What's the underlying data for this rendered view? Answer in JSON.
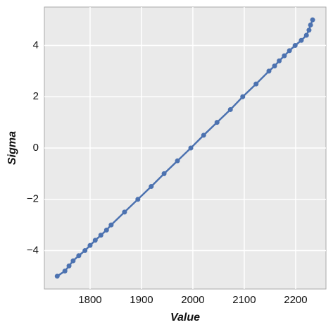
{
  "chart_data": {
    "type": "line",
    "x_label": "Value",
    "y_label": "Sigma",
    "x": [
      1736,
      1751,
      1759,
      1767,
      1778,
      1790,
      1800,
      1810,
      1821,
      1832,
      1841,
      1867,
      1893,
      1919,
      1944,
      1970,
      1996,
      2021,
      2047,
      2073,
      2097,
      2123,
      2148,
      2159,
      2168,
      2178,
      2188,
      2199,
      2211,
      2221,
      2226,
      2229,
      2233
    ],
    "series": [
      {
        "color": "#4c72b0",
        "values": [
          -5,
          -4.8,
          -4.6,
          -4.4,
          -4.2,
          -4,
          -3.8,
          -3.6,
          -3.4,
          -3.2,
          -3,
          -2.5,
          -2,
          -1.5,
          -1,
          -0.5,
          0,
          0.5,
          1,
          1.5,
          2,
          2.5,
          3,
          3.2,
          3.4,
          3.6,
          3.8,
          4,
          4.2,
          4.4,
          4.6,
          4.8,
          5
        ]
      }
    ],
    "xlim": [
      1711,
      2259
    ],
    "ylim": [
      -5.5,
      5.5
    ],
    "xticks": [
      1800,
      1900,
      2000,
      2100,
      2200
    ],
    "yticks": [
      {
        "value": -4,
        "label": "−4"
      },
      {
        "value": -2,
        "label": "−2"
      },
      0,
      2,
      4
    ],
    "grid": true
  }
}
